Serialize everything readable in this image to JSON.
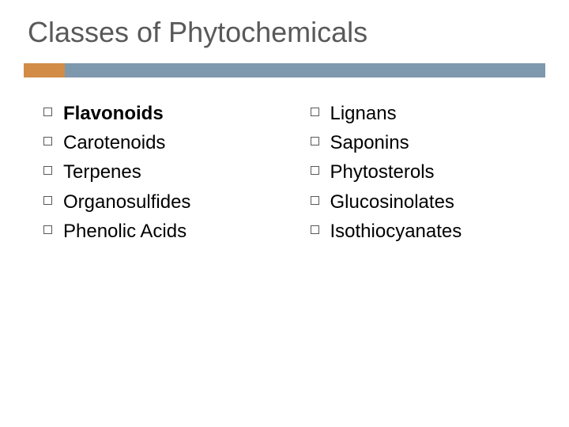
{
  "slide": {
    "title": "Classes of Phytochemicals",
    "title_color": "#595959",
    "title_fontsize": 36,
    "accent_bar": {
      "short_color": "#d38c47",
      "long_color": "#7e98ad",
      "height": 18,
      "short_width": 52
    },
    "background_color": "#ffffff",
    "bullet_style": {
      "type": "hollow-square",
      "size": 11,
      "border_color": "#595959"
    },
    "item_fontsize": 24,
    "item_color": "#000000",
    "columns": [
      {
        "items": [
          {
            "text": "Flavonoids",
            "bold": true
          },
          {
            "text": "Carotenoids",
            "bold": false
          },
          {
            "text": "Terpenes",
            "bold": false
          },
          {
            "text": "Organosulfides",
            "bold": false
          },
          {
            "text": "Phenolic Acids",
            "bold": false
          }
        ]
      },
      {
        "items": [
          {
            "text": "Lignans",
            "bold": false
          },
          {
            "text": "Saponins",
            "bold": false
          },
          {
            "text": "Phytosterols",
            "bold": false
          },
          {
            "text": "Glucosinolates",
            "bold": false
          },
          {
            "text": "Isothiocyanates",
            "bold": false
          }
        ]
      }
    ]
  }
}
